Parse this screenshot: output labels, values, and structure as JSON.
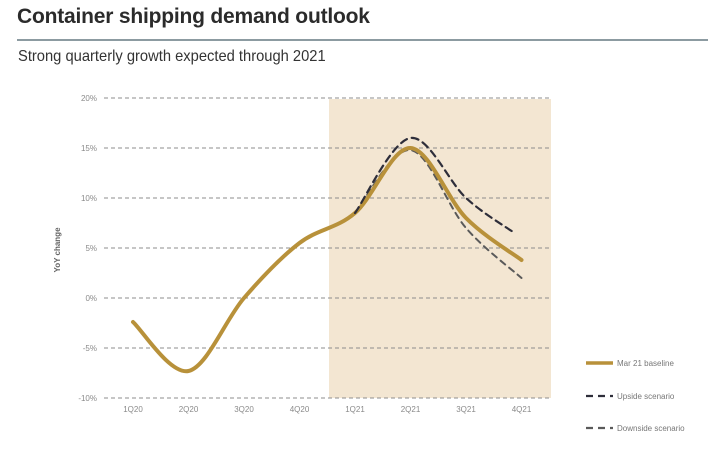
{
  "header": {
    "title": "Container shipping demand outlook",
    "subtitle": "Strong quarterly growth expected through 2021"
  },
  "chart_data": {
    "type": "line",
    "title": "Container shipping demand outlook",
    "subtitle": "Strong quarterly growth expected through 2021",
    "xlabel": "",
    "ylabel": "YoY change",
    "categories": [
      "1Q20",
      "2Q20",
      "3Q20",
      "4Q20",
      "1Q21",
      "2Q21",
      "3Q21",
      "4Q21"
    ],
    "ylim": [
      -10,
      20
    ],
    "yticks": [
      20,
      15,
      10,
      5,
      0,
      -5,
      -10
    ],
    "ytick_labels": [
      "20%",
      "15%",
      "10%",
      "5%",
      "0%",
      "-5%",
      "-10%"
    ],
    "grid": "horizontal-dashed",
    "shaded_region": {
      "from": "1Q21",
      "to": "4Q21",
      "color": "#f3e6d2",
      "meaning": "forecast period"
    },
    "legend_position": "bottom-right",
    "series": [
      {
        "name": "Mar 21 baseline",
        "style": "solid",
        "color": "#b8913a",
        "values": [
          -2.4,
          -7.3,
          0.0,
          5.5,
          8.5,
          15.0,
          8.0,
          3.8
        ]
      },
      {
        "name": "Upside scenario",
        "style": "dashed",
        "color": "#2e2e3a",
        "values": [
          null,
          null,
          null,
          null,
          8.5,
          16.0,
          10.0,
          6.5
        ]
      },
      {
        "name": "Downside scenario",
        "style": "dashed",
        "color": "#5a5a5a",
        "values": [
          null,
          null,
          null,
          null,
          8.5,
          14.8,
          7.0,
          2.0
        ]
      }
    ]
  }
}
